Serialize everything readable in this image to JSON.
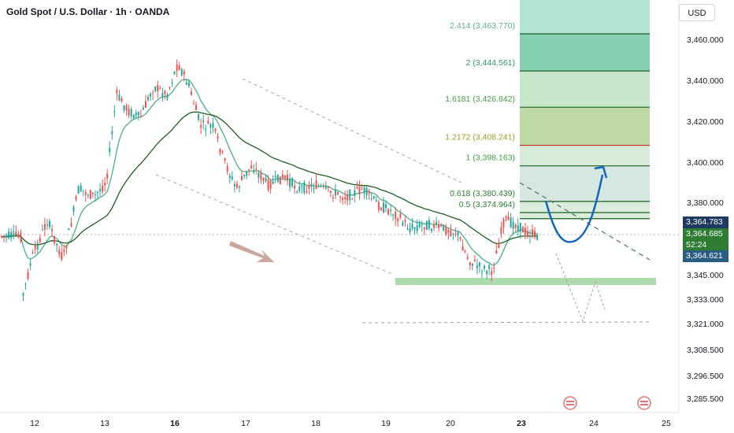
{
  "header": {
    "symbol": "Gold Spot / U.S. Dollar · 1h · OANDA",
    "currency": "USD"
  },
  "price_tags": {
    "a": "3,364.783",
    "b": "3,364.685",
    "c": "52:24",
    "d": "3,364.621"
  },
  "colors": {
    "up": "#26a69a",
    "down": "#ef5350",
    "ema_fast": "#4caf8a",
    "ema_slow": "#1b5e20",
    "fib_line": "#2e7d32",
    "support_zone": "#a5d6a7",
    "projection": "#1565c0",
    "arrow": "#c09a8e"
  },
  "chart_data": {
    "type": "candlestick",
    "title": "Gold Spot / U.S. Dollar · 1h · OANDA",
    "y_axis": {
      "ticks": [
        3460,
        3440,
        3420,
        3400,
        3380,
        3345,
        3333,
        3321,
        3308.5,
        3296.5,
        3285.5
      ],
      "labels": [
        "3,460.000",
        "3,440.000",
        "3,420.000",
        "3,400.000",
        "3,380.000",
        "3,345.000",
        "3,333.000",
        "3,321.000",
        "3,308.500",
        "3,296.500",
        "3,285.500"
      ]
    },
    "x_axis": {
      "labels": [
        "12",
        "13",
        "16",
        "17",
        "18",
        "19",
        "20",
        "23",
        "24",
        "25"
      ],
      "bold": [
        "16",
        "23"
      ]
    },
    "fib_levels": [
      {
        "label": "2.414 (3,463.770)",
        "value": 3463.77,
        "color": "#5fb08c"
      },
      {
        "label": "2 (3,444.561)",
        "value": 3444.561,
        "color": "#2e9a66"
      },
      {
        "label": "1.6181 (3,426.842)",
        "value": 3426.842,
        "color": "#43a047"
      },
      {
        "label": "1.2172 (3,408.241)",
        "value": 3408.241,
        "color": "#9e9d24"
      },
      {
        "label": "1 (3,398.163)",
        "value": 3398.163,
        "color": "#43a047"
      },
      {
        "label": "0.618 (3,380.439)",
        "value": 3380.439,
        "color": "#2e7d32"
      },
      {
        "label": "0.5 (3,374.964)",
        "value": 3374.964,
        "color": "#2e7d32"
      }
    ],
    "last_price": 3364.685,
    "support_zone": [
      3341,
      3345
    ],
    "grid": false
  }
}
